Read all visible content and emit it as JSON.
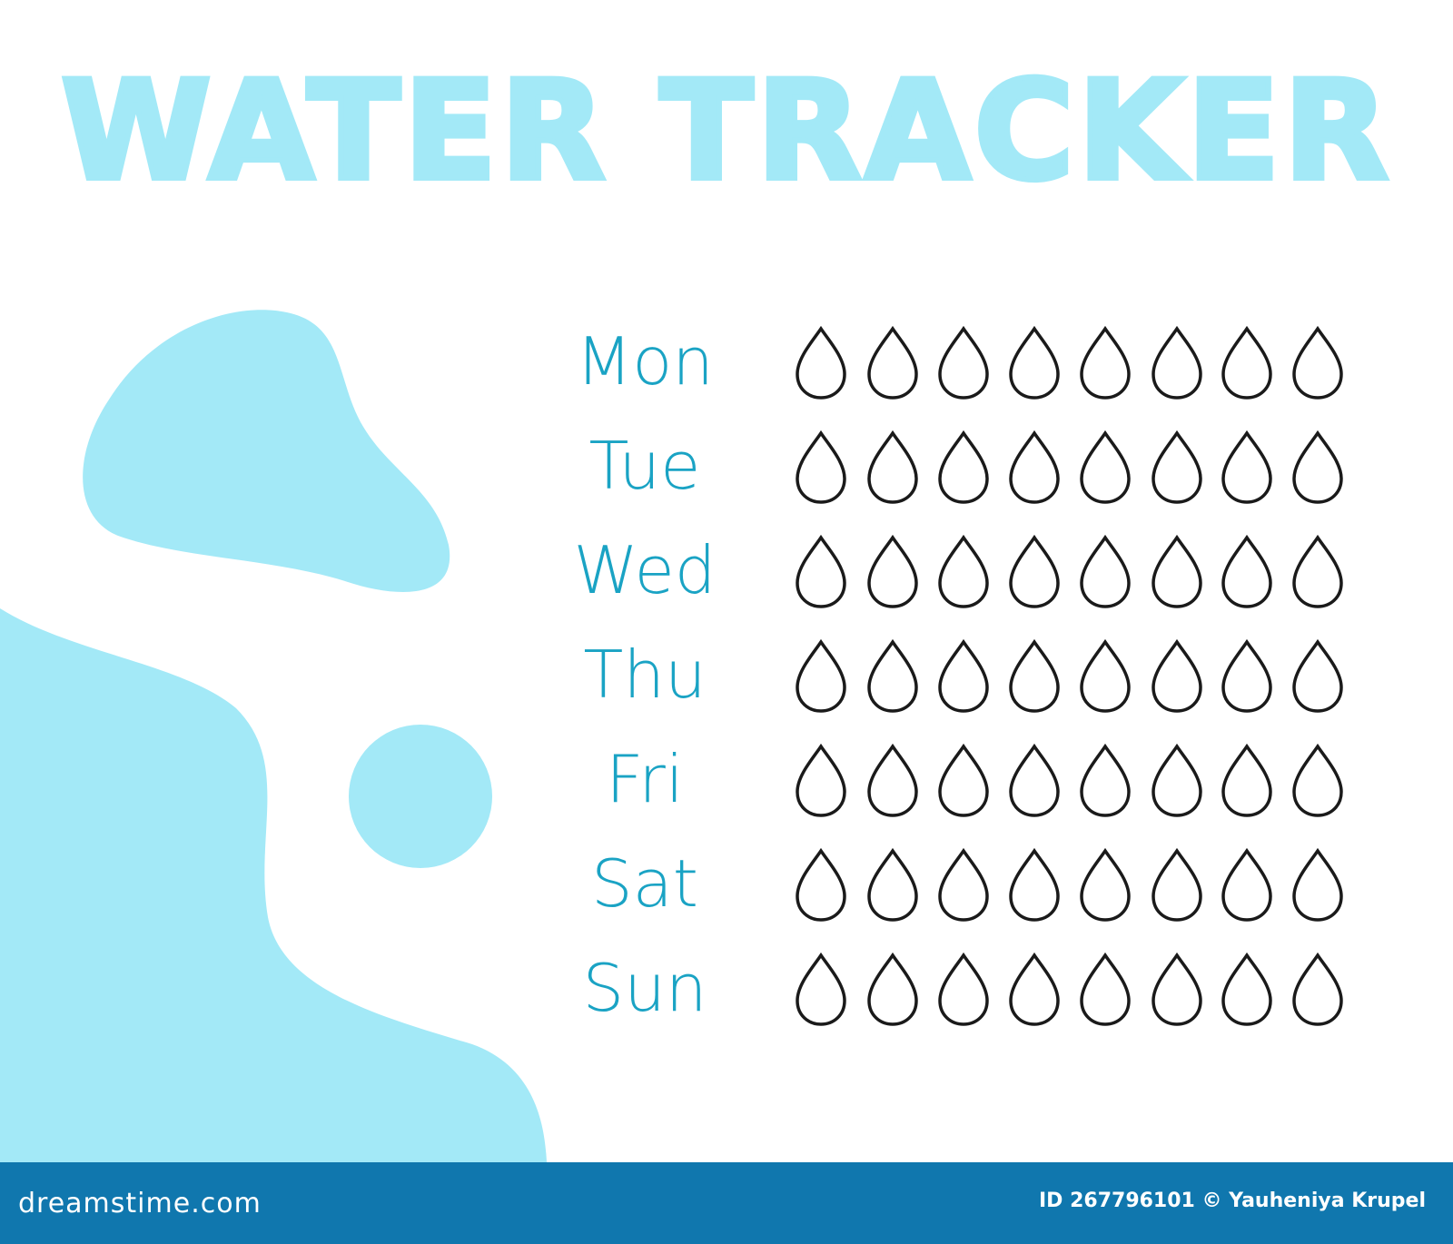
{
  "title": "WATER TRACKER",
  "colors": {
    "accent_light": "#a3e9f7",
    "day_text": "#1aa3c4",
    "drop_outline": "#1a1a1a",
    "footer": "#1077ae"
  },
  "drops_per_day": 8,
  "days": [
    {
      "label": "Mon",
      "filled": 0
    },
    {
      "label": "Tue",
      "filled": 0
    },
    {
      "label": "Wed",
      "filled": 0
    },
    {
      "label": "Thu",
      "filled": 0
    },
    {
      "label": "Fri",
      "filled": 0
    },
    {
      "label": "Sat",
      "filled": 0
    },
    {
      "label": "Sun",
      "filled": 0
    }
  ],
  "icon": "water-drop-icon",
  "footer": {
    "brand": "dreamstime.com",
    "credit": "ID 267796101 © Yauheniya Krupel"
  }
}
